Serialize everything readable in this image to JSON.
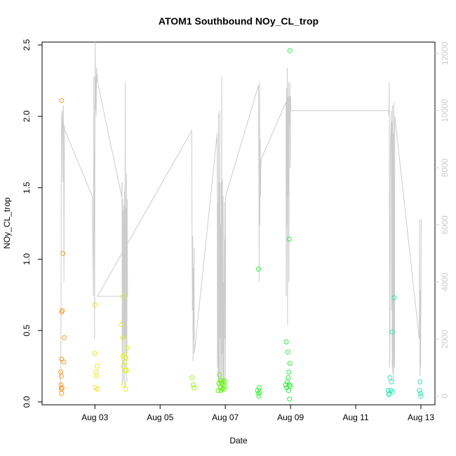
{
  "chart_data": {
    "type": "scatter",
    "title": "ATOM1 Southbound NOy_CL_trop",
    "xlabel": "Date",
    "ylabel": "NOy_CL_trop",
    "x_ticks": [
      {
        "day": 3,
        "label": "Aug 03"
      },
      {
        "day": 5,
        "label": "Aug 05"
      },
      {
        "day": 7,
        "label": "Aug 07"
      },
      {
        "day": 9,
        "label": "Aug 09"
      },
      {
        "day": 11,
        "label": "Aug 11"
      },
      {
        "day": 13,
        "label": "Aug 13"
      }
    ],
    "xlim_days": [
      1.38,
      13.43
    ],
    "ylim": [
      -0.02,
      2.52
    ],
    "y_ticks": [
      "0.0",
      "0.5",
      "1.0",
      "1.5",
      "2.0",
      "2.5"
    ],
    "y2_ticks": [
      "0",
      "2000",
      "4000",
      "6000",
      "8000",
      "10000",
      "12000"
    ],
    "y2lim": [
      -300,
      12400
    ],
    "grid": false,
    "series": [
      {
        "color": "#f59a1e",
        "points": [
          [
            1.98,
            2.11
          ],
          [
            2.02,
            1.04
          ],
          [
            2.0,
            0.64
          ],
          [
            1.98,
            0.63
          ],
          [
            2.06,
            0.45
          ],
          [
            1.98,
            0.3
          ],
          [
            2.04,
            0.28
          ],
          [
            1.95,
            0.21
          ],
          [
            1.97,
            0.18
          ],
          [
            1.96,
            0.12
          ],
          [
            1.99,
            0.1
          ],
          [
            1.97,
            0.09
          ],
          [
            1.98,
            0.06
          ]
        ]
      },
      {
        "color": "#f2e21c",
        "points": [
          [
            3.0,
            0.68
          ],
          [
            3.0,
            0.34
          ],
          [
            3.07,
            0.25
          ],
          [
            3.03,
            0.21
          ],
          [
            3.05,
            0.18
          ],
          [
            3.02,
            0.1
          ],
          [
            3.08,
            0.09
          ]
        ]
      },
      {
        "color": "#dff21b",
        "points": [
          [
            3.87,
            0.74
          ],
          [
            3.82,
            0.54
          ],
          [
            3.85,
            0.45
          ],
          [
            3.98,
            0.38
          ],
          [
            3.9,
            0.33
          ],
          [
            3.86,
            0.32
          ],
          [
            3.95,
            0.31
          ],
          [
            3.92,
            0.28
          ],
          [
            3.88,
            0.25
          ],
          [
            3.93,
            0.22
          ],
          [
            3.97,
            0.22
          ],
          [
            3.89,
            0.12
          ],
          [
            3.94,
            0.09
          ]
        ]
      },
      {
        "color": "#9ef51f",
        "points": [
          [
            5.98,
            0.17
          ],
          [
            6.02,
            0.12
          ],
          [
            6.04,
            0.1
          ]
        ]
      },
      {
        "color": "#6cf51a",
        "points": [
          [
            6.82,
            0.19
          ],
          [
            6.85,
            0.15
          ],
          [
            6.9,
            0.14
          ],
          [
            6.95,
            0.15
          ],
          [
            7.0,
            0.14
          ],
          [
            6.88,
            0.13
          ],
          [
            6.8,
            0.13
          ],
          [
            6.92,
            0.12
          ],
          [
            6.98,
            0.11
          ],
          [
            6.84,
            0.1
          ],
          [
            6.91,
            0.09
          ],
          [
            6.96,
            0.09
          ],
          [
            6.78,
            0.08
          ],
          [
            6.87,
            0.08
          ]
        ]
      },
      {
        "color": "#35f035",
        "points": [
          [
            8.02,
            0.93
          ],
          [
            8.04,
            0.1
          ],
          [
            7.99,
            0.08
          ],
          [
            8.06,
            0.07
          ],
          [
            8.01,
            0.06
          ],
          [
            8.03,
            0.04
          ]
        ]
      },
      {
        "color": "#2fe83e",
        "points": [
          [
            8.98,
            2.46
          ],
          [
            8.96,
            1.14
          ],
          [
            8.87,
            0.42
          ],
          [
            8.92,
            0.35
          ],
          [
            8.95,
            0.21
          ],
          [
            8.98,
            0.27
          ],
          [
            8.93,
            0.17
          ],
          [
            8.9,
            0.14
          ],
          [
            8.85,
            0.12
          ],
          [
            8.96,
            0.12
          ],
          [
            8.99,
            0.11
          ],
          [
            8.88,
            0.1
          ],
          [
            8.94,
            0.08
          ],
          [
            8.97,
            0.02
          ]
        ]
      },
      {
        "color": "#31e3b2",
        "points": [
          [
            12.18,
            0.73
          ],
          [
            12.12,
            0.49
          ],
          [
            12.05,
            0.17
          ],
          [
            12.1,
            0.14
          ],
          [
            12.0,
            0.08
          ],
          [
            12.08,
            0.08
          ],
          [
            12.14,
            0.07
          ],
          [
            12.03,
            0.06
          ],
          [
            12.01,
            0.05
          ],
          [
            12.97,
            0.14
          ],
          [
            12.95,
            0.08
          ],
          [
            12.98,
            0.06
          ],
          [
            13.0,
            0.04
          ]
        ]
      }
    ],
    "altitude_track": {
      "color": "#cccccc",
      "axis": "right",
      "x_days": [
        1.95,
        1.96,
        1.97,
        1.98,
        1.99,
        2.0,
        2.01,
        2.02,
        2.03,
        2.04,
        2.05,
        2.06,
        2.07,
        2.08,
        2.12,
        2.92,
        2.95,
        2.97,
        2.99,
        3.0,
        3.01,
        3.02,
        3.03,
        3.04,
        3.05,
        3.06,
        3.07,
        3.08,
        3.82,
        3.83,
        3.84,
        3.85,
        3.86,
        3.87,
        3.88,
        3.89,
        3.9,
        3.91,
        3.92,
        3.93,
        3.94,
        3.95,
        3.96,
        3.97,
        3.98,
        3.99,
        4.0,
        3.08,
        5.97,
        5.98,
        5.99,
        6.0,
        6.01,
        6.02,
        6.03,
        6.04,
        6.05,
        6.75,
        6.76,
        6.77,
        6.78,
        6.79,
        6.8,
        6.81,
        6.82,
        6.83,
        6.84,
        6.85,
        6.86,
        6.87,
        6.88,
        6.89,
        6.9,
        6.91,
        6.92,
        6.93,
        6.94,
        6.95,
        6.96,
        6.97,
        6.98,
        6.99,
        7.0,
        7.01,
        8.02,
        8.03,
        8.04,
        8.05,
        8.06,
        8.07,
        8.08,
        8.09,
        8.1,
        8.86,
        8.87,
        8.88,
        8.89,
        8.9,
        8.91,
        8.92,
        8.93,
        8.94,
        8.95,
        8.96,
        8.97,
        8.98,
        8.99,
        9.0,
        9.01,
        12.0,
        12.02,
        12.03,
        12.04,
        12.05,
        12.06,
        12.07,
        12.08,
        12.09,
        12.1,
        12.11,
        12.12,
        12.13,
        12.14,
        12.15,
        12.16,
        12.17,
        12.18,
        12.19,
        12.2,
        12.95,
        12.96,
        12.97,
        12.98,
        12.99,
        13.0,
        13.01
      ],
      "alt_m": [
        200,
        3000,
        8600,
        9800,
        10000,
        9200,
        7500,
        9800,
        10200,
        9000,
        4000,
        8000,
        9500,
        9300,
        9200,
        7000,
        3500,
        11200,
        2000,
        9500,
        12400,
        10000,
        11200,
        9800,
        11500,
        11000,
        11300,
        11000,
        7000,
        7500,
        400,
        6900,
        2000,
        6500,
        500,
        6700,
        2000,
        7200,
        300,
        11000,
        2000,
        6600,
        1500,
        7800,
        500,
        6900,
        3500,
        3500,
        9300,
        5500,
        3000,
        5600,
        1200,
        4500,
        2000,
        5200,
        1500,
        9200,
        1000,
        6800,
        200,
        9900,
        500,
        7500,
        300,
        10000,
        2000,
        6000,
        500,
        7500,
        200,
        11200,
        1500,
        7600,
        300,
        7000,
        200,
        4000,
        500,
        6800,
        2000,
        5500,
        400,
        7000,
        10900,
        8000,
        4000,
        11000,
        6000,
        9000,
        7000,
        8000,
        8300,
        10300,
        3500,
        10800,
        6000,
        11500,
        2500,
        10500,
        7000,
        11000,
        4000,
        10500,
        9500,
        11000,
        8000,
        10500,
        10000,
        10000,
        9800,
        11000,
        1000,
        2000,
        8000,
        9000,
        9500,
        10000,
        3000,
        9600,
        1000,
        10200,
        800,
        9200,
        500,
        10300,
        1500,
        1000,
        9800,
        2000,
        6200,
        700,
        3700,
        1000,
        3500,
        6200
      ]
    }
  }
}
